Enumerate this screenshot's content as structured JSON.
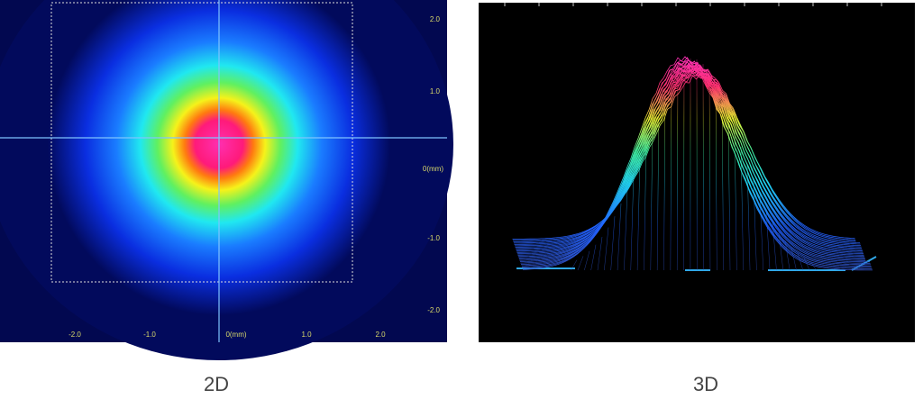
{
  "panels": [
    {
      "caption": "2D",
      "y_axis_labels": [
        "2.0",
        "1.0",
        "0(mm)",
        "-1.0",
        "-2.0"
      ],
      "x_axis_labels": [
        "-2.0",
        "-1.0",
        "0(mm)",
        "1.0",
        "2.0"
      ]
    },
    {
      "caption": "3D"
    }
  ]
}
